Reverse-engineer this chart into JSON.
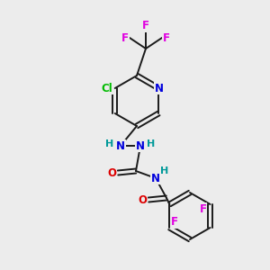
{
  "background_color": "#ececec",
  "bond_color": "#1a1a1a",
  "atom_colors": {
    "F": "#e000e0",
    "Cl": "#00bb00",
    "N": "#0000dd",
    "O": "#dd0000",
    "H": "#009999",
    "C": "#1a1a1a"
  },
  "figsize": [
    3.0,
    3.0
  ],
  "dpi": 100
}
